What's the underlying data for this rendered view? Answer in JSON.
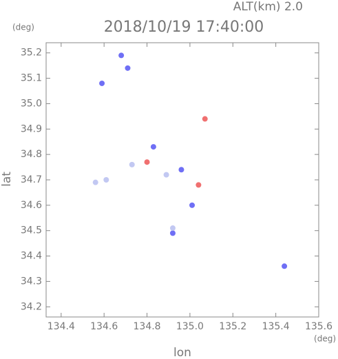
{
  "chart_data": {
    "type": "scatter",
    "title": "2018/10/19 17:40:00",
    "subtitle": "ALT(km) 2.0",
    "x_label": "lon",
    "y_label": "lat",
    "x_unit": "(deg)",
    "y_unit": "(deg)",
    "xlim": [
      134.33,
      135.6
    ],
    "ylim": [
      34.16,
      35.24
    ],
    "xticks": [
      134.4,
      134.6,
      134.8,
      {
        "value": 135,
        "label": "135.0"
      },
      135.2,
      135.4,
      135.6
    ],
    "yticks": [
      34.2,
      34.3,
      34.4,
      34.5,
      34.6,
      34.7,
      34.8,
      34.9,
      {
        "value": 35,
        "label": "35.0"
      },
      35.1,
      35.2
    ],
    "series": [
      {
        "color": "#6f6ff5",
        "x": [
          134.68,
          134.71,
          134.59,
          134.83,
          134.96,
          135.01,
          134.92,
          135.44
        ],
        "values": [
          35.19,
          35.14,
          35.08,
          34.83,
          34.74,
          34.6,
          34.49,
          34.36
        ]
      },
      {
        "color": "#f07070",
        "x": [
          135.07,
          134.8,
          135.04
        ],
        "values": [
          34.94,
          34.77,
          34.68
        ]
      },
      {
        "color": "#c2c8f2",
        "x": [
          134.61,
          134.56,
          134.92,
          134.73,
          134.89
        ],
        "values": [
          34.7,
          34.69,
          34.51,
          34.76,
          34.72
        ]
      }
    ]
  }
}
